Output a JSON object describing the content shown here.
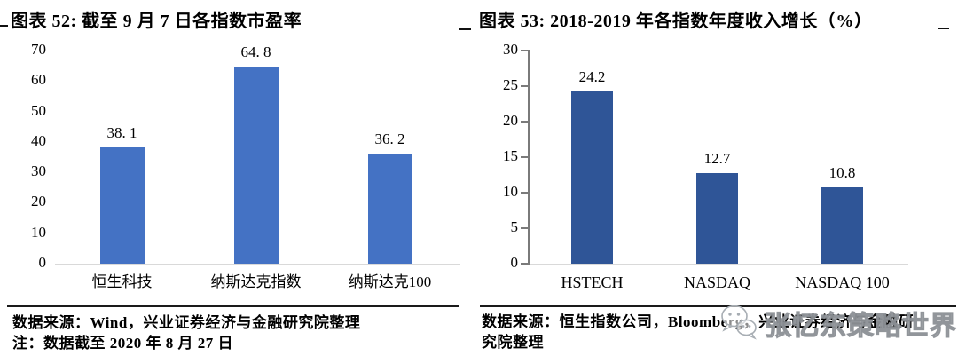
{
  "page": {
    "background": "#ffffff"
  },
  "figures": [
    {
      "title": "图表 52:  截至 9 月 7 日各指数市盈率",
      "source_lines": [
        "数据来源：Wind，兴业证券经济与金融研究院整理",
        "注：数据截至 2020 年 8 月 27 日"
      ]
    },
    {
      "title": "图表 53:  2018-2019 年各指数年度收入增长（%）",
      "source_lines": [
        "数据来源：恒生指数公司，Bloomberg，兴业证券经济与金融研",
        "究院整理"
      ]
    }
  ],
  "watermark": {
    "text": "张忆东策略世界",
    "logo": "wechat-bubbles-icon",
    "color": "#9aa0a6"
  },
  "chart_data": [
    {
      "type": "bar",
      "title": "截至 9 月 7 日各指数市盈率",
      "categories": [
        "恒生科技",
        "纳斯达克指数",
        "纳斯达克100"
      ],
      "values": [
        38.1,
        64.8,
        36.2
      ],
      "value_labels": [
        "38. 1",
        "64. 8",
        "36. 2"
      ],
      "ylim": [
        0,
        70
      ],
      "yticks": [
        "0",
        "10",
        "20",
        "30",
        "40",
        "50",
        "60",
        "70"
      ],
      "bar_color": "#4472C4",
      "grid": false,
      "legend": false,
      "y_axis_line": false
    },
    {
      "type": "bar",
      "title": "2018-2019 年各指数年度收入增长（%）",
      "categories": [
        "HSTECH",
        "NASDAQ",
        "NASDAQ 100"
      ],
      "values": [
        24.2,
        12.7,
        10.8
      ],
      "value_labels": [
        "24.2",
        "12.7",
        "10.8"
      ],
      "ylim": [
        0,
        30
      ],
      "yticks": [
        "0",
        "5",
        "10",
        "15",
        "20",
        "25",
        "30"
      ],
      "bar_color": "#2F5597",
      "grid": false,
      "legend": false,
      "y_axis_line": true
    }
  ]
}
